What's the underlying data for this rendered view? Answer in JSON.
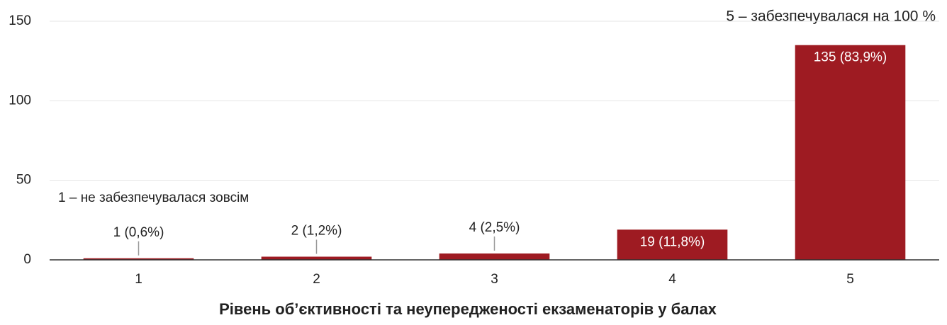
{
  "chart_data": {
    "type": "bar",
    "x_label": "Рівень об’єктивності та неупередженості екзаменаторів у балах",
    "annotations": [
      "1 – не забезпечувалася зовсім",
      "5 – забезпечувалася на 100 %"
    ],
    "categories": [
      "1",
      "2",
      "3",
      "4",
      "5"
    ],
    "values": [
      1,
      2,
      4,
      19,
      135
    ],
    "value_labels": [
      "1 (0,6%)",
      "2 (1,2%)",
      "4 (2,5%)",
      "19 (11,8%)",
      "135 (83,9%)"
    ],
    "color": "#9e1b22",
    "ylim": [
      0,
      150
    ],
    "yticks": [
      0,
      50,
      100,
      150
    ],
    "grid": true
  }
}
